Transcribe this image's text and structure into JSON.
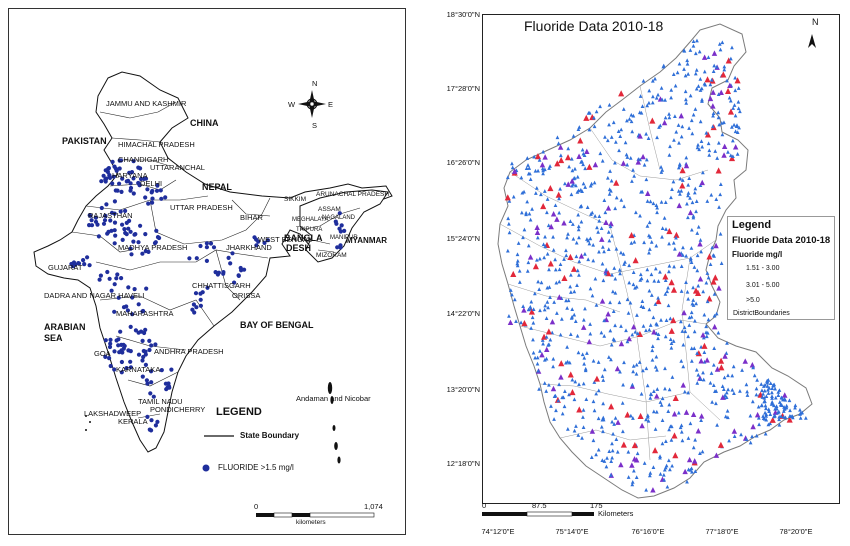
{
  "left_map": {
    "compass": {
      "n": "N",
      "s": "S",
      "e": "E",
      "w": "W"
    },
    "countries": {
      "pakistan": "PAKISTAN",
      "china": "CHINA",
      "nepal": "NEPAL",
      "bangladesh_1": "BANGLA",
      "bangladesh_2": "DESH",
      "myanmar": "MYANMAR",
      "arabian_sea_1": "ARABIAN",
      "arabian_sea_2": "SEA",
      "bay_of_bengal": "BAY OF BENGAL"
    },
    "states": {
      "jammu_kashmir": "JAMMU AND KASHMIR",
      "himachal": "HIMACHAL PRADESH",
      "chandigarh": "CHANDIGARH",
      "uttaranchal": "UTTARANCHAL",
      "delhi": "DELHI",
      "haryana": "HARYANA",
      "rajasthan": "RAJASTHAN",
      "uttar_pradesh": "UTTAR PRADESH",
      "sikkim": "SIKKIM",
      "arunachal": "ARUNACHAL PRADESH",
      "assam": "ASSAM",
      "nagaland": "NAGALAND",
      "meghalaya": "MEGHALAYA",
      "manipur": "MANIPUR",
      "tripura": "TRIPURA",
      "mizoram": "MIZORAM",
      "bihar": "BIHAR",
      "jharkhand": "JHARKHAND",
      "west_bengal": "WEST BENGAL",
      "madhya_pradesh": "MADHYA PRADESH",
      "gujarat": "GUJARAT",
      "chhattisgarh": "CHHATTISGARH",
      "orissa": "ORISSA",
      "dadra": "DADRA AND NAGAR HAVELI",
      "maharashtra": "MAHARASHTRA",
      "andhra": "ANDHRA PRADESH",
      "karnataka": "KARNATAKA",
      "goa": "GOA",
      "tamil_nadu": "TAMIL NADU",
      "pondicherry": "PONDICHERRY",
      "kerala": "KERALA",
      "lakshadweep": "LAKSHADWEEP",
      "andaman": "Andaman and Nicobar"
    },
    "legend": {
      "title": "LEGEND",
      "boundary": "State Boundary",
      "fluoride": "FLUORIDE  >1.5 mg/l"
    },
    "scalebar": {
      "start": "0",
      "mid": "1,074",
      "units": "kilometers"
    }
  },
  "right_map": {
    "title": "Fluoride Data 2010-18",
    "north": "N",
    "lat_ticks": [
      "18°30'0\"N",
      "17°28'0\"N",
      "16°26'0\"N",
      "15°24'0\"N",
      "14°22'0\"N",
      "13°20'0\"N",
      "12°18'0\"N"
    ],
    "lon_ticks": [
      "74°12'0\"E",
      "75°14'0\"E",
      "76°16'0\"E",
      "77°18'0\"E",
      "78°20'0\"E"
    ],
    "legend": {
      "title": "Legend",
      "subtitle": "Fluoride Data 2010-18",
      "unit": "Fluoride mg/l",
      "items": [
        {
          "label": "1.51 - 3.00",
          "color": "#2f6fd8"
        },
        {
          "label": "3.01 - 5.00",
          "color": "#7b2fc9"
        },
        {
          "label": ">5.0",
          "color": "#e2283a"
        }
      ],
      "boundaries": "DistrictBoundaries"
    },
    "scalebar": {
      "start": "0",
      "mid": "87.5",
      "end": "175",
      "units": "Kilometers"
    }
  },
  "colors": {
    "dot_blue": "#1f2e9c",
    "tri_blue": "#2f6fd8",
    "tri_purple": "#7b2fc9",
    "tri_red": "#e2283a"
  }
}
